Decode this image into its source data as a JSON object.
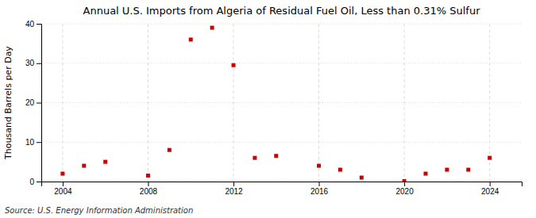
{
  "chart_data": {
    "type": "scatter",
    "title": "Annual U.S. Imports from Algeria of Residual Fuel Oil, Less than 0.31% Sulfur",
    "ylabel": "Thousand Barrels per Day",
    "annotations": [
      "Source: U.S. Energy Information Administration"
    ],
    "x": [
      2004,
      2005,
      2006,
      2008,
      2009,
      2010,
      2011,
      2012,
      2013,
      2014,
      2016,
      2017,
      2018,
      2020,
      2021,
      2022,
      2023,
      2024
    ],
    "values": [
      2.0,
      4.0,
      5.0,
      1.5,
      8.0,
      36.0,
      39.0,
      29.5,
      6.0,
      6.5,
      4.0,
      3.0,
      1.0,
      0.1,
      2.0,
      3.0,
      3.0,
      6.0
    ],
    "color": "#cc0000",
    "marker": "square",
    "xlim": [
      2003.0,
      2025.5
    ],
    "ylim": [
      0,
      40
    ],
    "xticks": [
      2004,
      2008,
      2012,
      2016,
      2020,
      2024
    ],
    "yticks": [
      0,
      10,
      20,
      30,
      40
    ],
    "grid": true
  }
}
